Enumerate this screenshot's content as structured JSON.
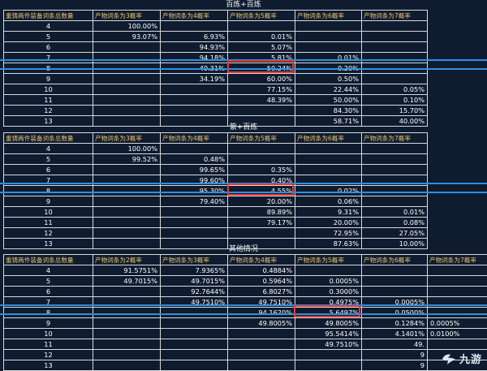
{
  "sections": [
    {
      "title": "百炼+百炼",
      "headers": [
        "重铸两件装备词条总数量",
        "产物词条为3概率",
        "产物词条为4概率",
        "产物词条为5概率",
        "产物词条为6概率",
        "产物词条为7概率"
      ],
      "rows": [
        [
          "4",
          "100.00%",
          "",
          "",
          "",
          ""
        ],
        [
          "5",
          "93.07%",
          "6.93%",
          "0.01%",
          "",
          ""
        ],
        [
          "6",
          "",
          "94.93%",
          "5.07%",
          "",
          ""
        ],
        [
          "7",
          "",
          "94.18%",
          "5.81%",
          "0.01%",
          ""
        ],
        [
          "8",
          "",
          "49.31%",
          "50.24%",
          "0.20%",
          ""
        ],
        [
          "9",
          "",
          "34.19%",
          "60.00%",
          "0.50%",
          ""
        ],
        [
          "10",
          "",
          "",
          "77.15%",
          "22.44%",
          "0.05%"
        ],
        [
          "11",
          "",
          "",
          "48.39%",
          "50.00%",
          "0.10%"
        ],
        [
          "12",
          "",
          "",
          "",
          "84.30%",
          "15.70%"
        ],
        [
          "13",
          "",
          "",
          "",
          "58.71%",
          "40.00%"
        ]
      ]
    },
    {
      "title": "紫+百炼",
      "headers": [
        "重铸两件装备词条总数量",
        "产物词条为3概率",
        "产物词条为4概率",
        "产物词条为5概率",
        "产物词条为6概率",
        "产物词条为7概率"
      ],
      "rows": [
        [
          "4",
          "100.00%",
          "",
          "",
          "",
          ""
        ],
        [
          "5",
          "99.52%",
          "0.48%",
          "",
          "",
          ""
        ],
        [
          "6",
          "",
          "99.65%",
          "0.35%",
          "",
          ""
        ],
        [
          "7",
          "",
          "99.60%",
          "0.40%",
          "",
          ""
        ],
        [
          "8",
          "",
          "95.30%",
          "4.55%",
          "0.02%",
          ""
        ],
        [
          "9",
          "",
          "79.40%",
          "20.00%",
          "0.06%",
          ""
        ],
        [
          "10",
          "",
          "",
          "89.89%",
          "9.31%",
          "0.01%"
        ],
        [
          "11",
          "",
          "",
          "79.17%",
          "20.00%",
          "0.08%"
        ],
        [
          "12",
          "",
          "",
          "",
          "72.95%",
          "27.05%"
        ],
        [
          "13",
          "",
          "",
          "",
          "87.63%",
          "10.00%"
        ]
      ]
    },
    {
      "title": "其他情况",
      "headers": [
        "重铸两件装备词条总数量",
        "产物词条为2概率",
        "产物词条为3概率",
        "产物词条为4概率",
        "产物词条为5概率",
        "产物词条为6概率",
        "产物词条为7概率"
      ],
      "rows": [
        [
          "4",
          "91.5751%",
          "7.9365%",
          "0.4884%",
          "",
          "",
          ""
        ],
        [
          "5",
          "49.7015%",
          "49.7015%",
          "0.5964%",
          "0.0005%",
          "",
          ""
        ],
        [
          "6",
          "",
          "92.7644%",
          "6.8027%",
          "0.3000%",
          "",
          ""
        ],
        [
          "7",
          "",
          "49.7510%",
          "49.7510%",
          "0.4975%",
          "0.0005%",
          ""
        ],
        [
          "8",
          "",
          "",
          "94.1620%",
          "5.6497%",
          "0.0500%",
          ""
        ],
        [
          "9",
          "",
          "",
          "49.8005%",
          "49.8005%",
          "0.1284%",
          "0.0005%"
        ],
        [
          "10",
          "",
          "",
          "",
          "95.5414%",
          "4.1401%",
          "0.0100%"
        ],
        [
          "11",
          "",
          "",
          "",
          "49.7510%",
          "49.",
          ""
        ],
        [
          "12",
          "",
          "",
          "",
          "",
          "9",
          ""
        ],
        [
          "13",
          "",
          "",
          "",
          "",
          "9",
          ""
        ]
      ]
    }
  ],
  "watermark": {
    "text": "九游"
  }
}
